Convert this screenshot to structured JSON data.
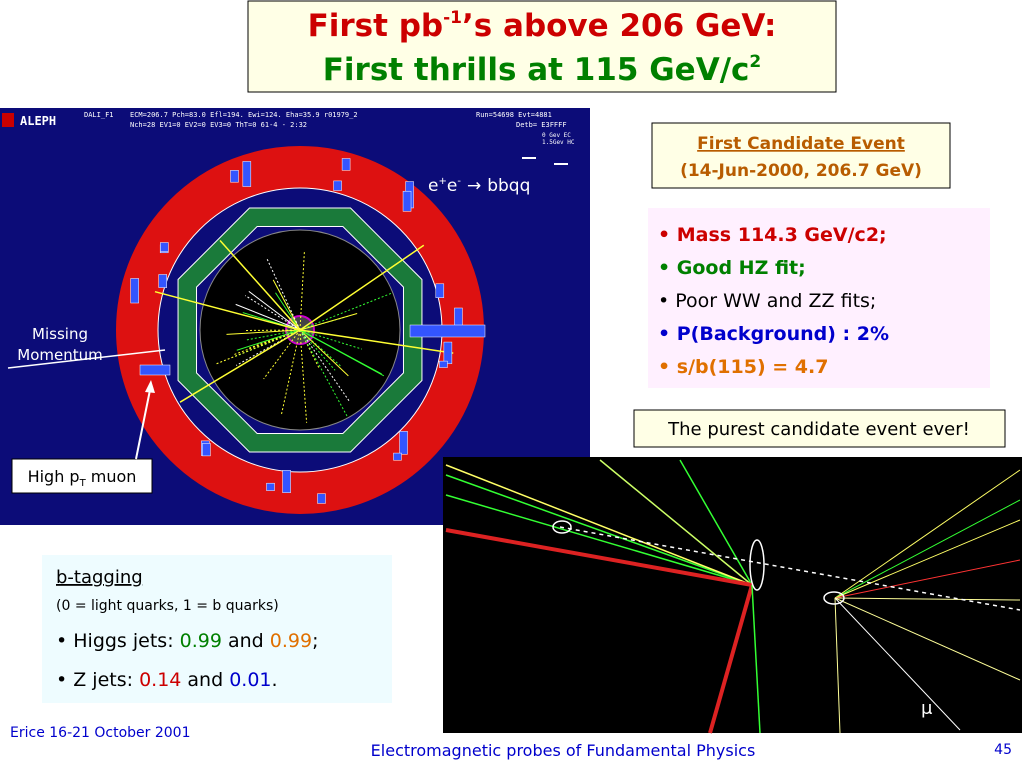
{
  "title": {
    "line1": [
      "First pb",
      "-1",
      "’s above 206 GeV:"
    ],
    "line2": [
      "First thrills at 115 GeV/c",
      "2"
    ]
  },
  "event_display": {
    "logo": "ALEPH",
    "program": "DALI_F1",
    "header_row1": "ECM=206.7 Pch=83.0 Efl=194. Ewi=124. Eha=35.9  r01979_2",
    "header_row2": "Nch=28    EV1=0    EV2=0    EV3=0    ThT=0          61-4  -    2:32",
    "run": "Run=54698   Evt=4881",
    "detb": "Detb=  E3FFFF",
    "scale1": "0  Gev EC",
    "scale2": "1.5Gev HC",
    "process": {
      "e1": "e",
      "sup1": "+",
      "e2": "e",
      "sup2": "-",
      "arrow": "→",
      "final": [
        "b",
        "b",
        "q",
        "q"
      ]
    },
    "missing_momentum": [
      "Missing",
      "Momentum"
    ],
    "muon_label": [
      "High p",
      "T",
      " muon"
    ]
  },
  "candidate": {
    "title": "First Candidate Event",
    "date": "(14-Jun-2000, 206.7 GeV)"
  },
  "properties": [
    "• Mass 114.3 GeV/c2;",
    "• Good HZ fit;",
    "• Poor WW and ZZ fits;",
    "• P(Background) : 2%",
    "• s/b(115) = 4.7"
  ],
  "purest": "The purest candidate event ever!",
  "zoom": {
    "mu": "μ"
  },
  "btag": {
    "title": "b-tagging",
    "subtitle": "(0 = light quarks, 1 = b quarks)",
    "higgs": [
      "• Higgs jets: ",
      "0.99",
      " and ",
      "0.99",
      ";"
    ],
    "z": [
      "• Z jets: ",
      "0.14",
      " and ",
      "0.01",
      "."
    ]
  },
  "footer": {
    "left": "Erice 16-21 October 2001",
    "center": "Electromagnetic probes of Fundamental Physics",
    "page": "45"
  }
}
